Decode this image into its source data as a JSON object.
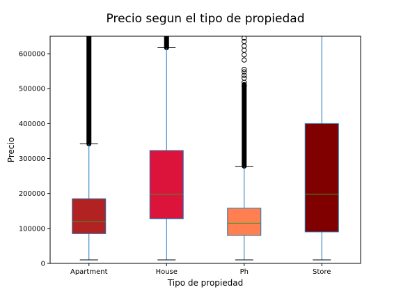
{
  "chart_data": {
    "type": "box",
    "title": "Precio segun el tipo de propiedad",
    "xlabel": "Tipo de propiedad",
    "ylabel": "Precio",
    "ylim": [
      0,
      650000
    ],
    "yticks": [
      0,
      100000,
      200000,
      300000,
      400000,
      500000,
      600000
    ],
    "grid": false,
    "legend": "none",
    "whisker_color": "#1f77b4",
    "median_color": "#2ca02c",
    "categories": [
      "Apartment",
      "House",
      "Ph",
      "Store"
    ],
    "boxes": [
      {
        "category": "Apartment",
        "color": "#b22222",
        "whisker_low": 10000,
        "q1": 85000,
        "median": 120000,
        "q3": 185000,
        "whisker_high": 342000,
        "outliers": {
          "style": "dense",
          "from": 342000,
          "to": 650000
        }
      },
      {
        "category": "House",
        "color": "#dc143c",
        "whisker_low": 10000,
        "q1": 128000,
        "median": 198000,
        "q3": 323000,
        "whisker_high": 617000,
        "outliers": {
          "style": "dense",
          "from": 617000,
          "to": 650000
        }
      },
      {
        "category": "Ph",
        "color": "#ff7f50",
        "whisker_low": 10000,
        "q1": 80000,
        "median": 115000,
        "q3": 158000,
        "whisker_high": 278000,
        "outliers": {
          "style": "dense",
          "from": 278000,
          "to": 500000,
          "points": [
            508000,
            518000,
            530000,
            538000,
            548000,
            555000,
            582000,
            597000,
            610000,
            622000,
            635000,
            645000
          ]
        }
      },
      {
        "category": "Store",
        "color": "#800000",
        "whisker_low": 10000,
        "q1": 90000,
        "median": 198000,
        "q3": 400000,
        "whisker_high": 650000,
        "outliers": null
      }
    ]
  }
}
